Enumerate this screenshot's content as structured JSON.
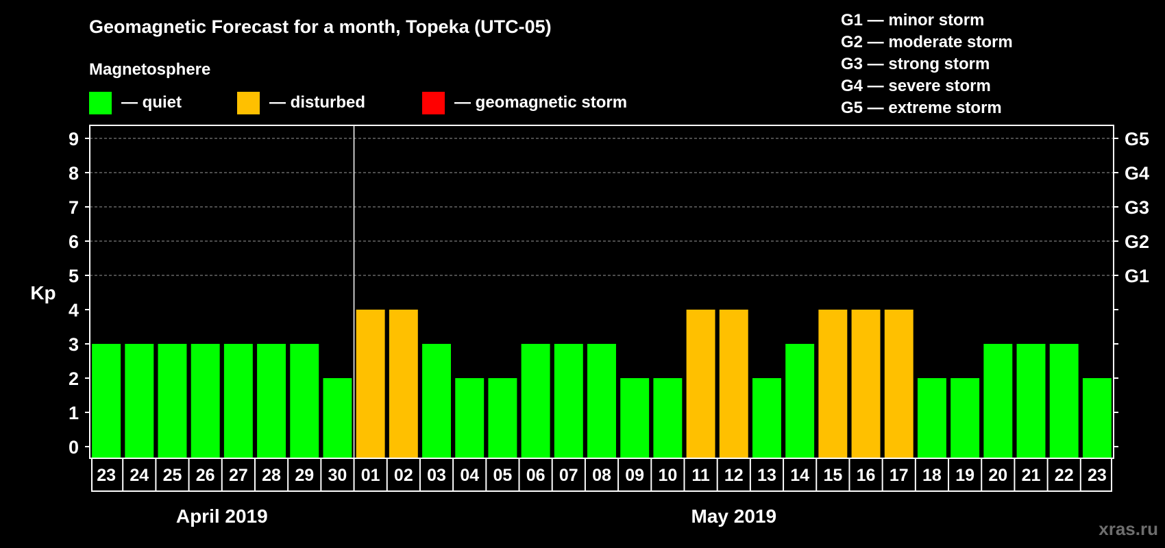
{
  "chart_data": {
    "type": "bar",
    "title": "Geomagnetic Forecast for a month, Topeka (UTC-05)",
    "legend_title": "Magnetosphere",
    "legend": [
      {
        "label": "— quiet",
        "color": "#00ff00"
      },
      {
        "label": "— disturbed",
        "color": "#ffc000"
      },
      {
        "label": "— geomagnetic storm",
        "color": "#ff0000"
      }
    ],
    "storm_scale": [
      "G1 — minor storm",
      "G2 — moderate storm",
      "G3 — strong storm",
      "G4 — severe storm",
      "G5 — extreme storm"
    ],
    "ylabel": "Kp",
    "ylim": [
      0,
      9
    ],
    "yticks": [
      0,
      1,
      2,
      3,
      4,
      5,
      6,
      7,
      8,
      9
    ],
    "right_ticks": [
      {
        "value": 5,
        "label": "G1"
      },
      {
        "value": 6,
        "label": "G2"
      },
      {
        "value": 7,
        "label": "G3"
      },
      {
        "value": 8,
        "label": "G4"
      },
      {
        "value": 9,
        "label": "G5"
      }
    ],
    "grid": true,
    "categories": [
      "23",
      "24",
      "25",
      "26",
      "27",
      "28",
      "29",
      "30",
      "01",
      "02",
      "03",
      "04",
      "05",
      "06",
      "07",
      "08",
      "09",
      "10",
      "11",
      "12",
      "13",
      "14",
      "15",
      "16",
      "17",
      "18",
      "19",
      "20",
      "21",
      "22",
      "23"
    ],
    "values": [
      3,
      3,
      3,
      3,
      3,
      3,
      3,
      2,
      4,
      4,
      3,
      2,
      2,
      3,
      3,
      3,
      2,
      2,
      4,
      4,
      2,
      3,
      4,
      4,
      4,
      2,
      2,
      3,
      3,
      3,
      2
    ],
    "colors": {
      "quiet": "#00ff00",
      "disturbed": "#ffc000",
      "storm": "#ff0000"
    },
    "months": [
      {
        "label": "April 2019",
        "start_index": 0,
        "end_index": 7
      },
      {
        "label": "May 2019",
        "start_index": 8,
        "end_index": 30
      }
    ]
  },
  "watermark": "xras.ru"
}
